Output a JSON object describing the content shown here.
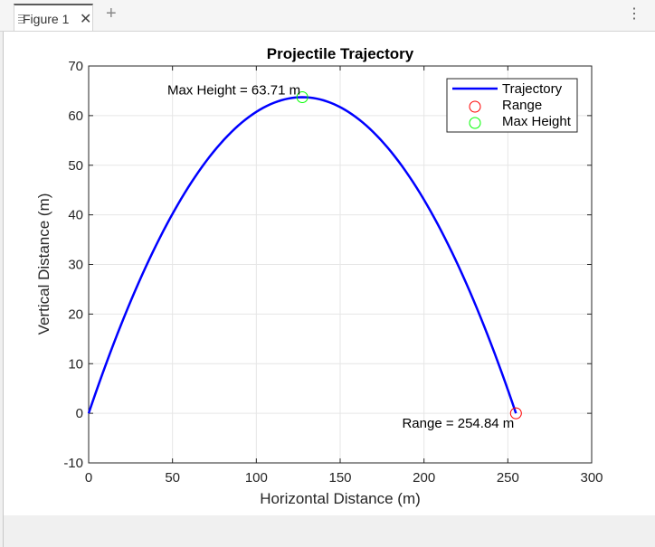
{
  "window": {
    "tab_label": "Figure 1",
    "close_glyph": "✕",
    "add_glyph": "+",
    "more_glyph": "⋮"
  },
  "chart_data": {
    "type": "line",
    "title": "Projectile Trajectory",
    "xlabel": "Horizontal Distance (m)",
    "ylabel": "Vertical Distance (m)",
    "xlim": [
      0,
      300
    ],
    "ylim": [
      -10,
      70
    ],
    "xticks": [
      0,
      50,
      100,
      150,
      200,
      250,
      300
    ],
    "yticks": [
      -10,
      0,
      10,
      20,
      30,
      40,
      50,
      60,
      70
    ],
    "grid": true,
    "legend_position": "top-right",
    "series": [
      {
        "name": "Trajectory",
        "kind": "line",
        "color": "#0000ff",
        "x": [
          0,
          20,
          40,
          60,
          80,
          100,
          127.42,
          140,
          160,
          180,
          200,
          220,
          240,
          254.84
        ],
        "y": [
          0,
          18.38,
          33.76,
          46.14,
          55.53,
          61.91,
          63.71,
          63.09,
          59.56,
          53.16,
          43.92,
          31.82,
          16.86,
          0
        ]
      },
      {
        "name": "Range",
        "kind": "marker",
        "color": "#ff0000",
        "x": [
          254.84
        ],
        "y": [
          0
        ]
      },
      {
        "name": "Max Height",
        "kind": "marker",
        "color": "#00ff00",
        "x": [
          127.42
        ],
        "y": [
          63.71
        ]
      }
    ],
    "annotations": [
      {
        "text": "Max Height = 63.71 m",
        "x": 127.42,
        "y": 63.71,
        "anchor": "end"
      },
      {
        "text": "Range = 254.84 m",
        "x": 254.84,
        "y": 0,
        "anchor": "end"
      }
    ]
  }
}
